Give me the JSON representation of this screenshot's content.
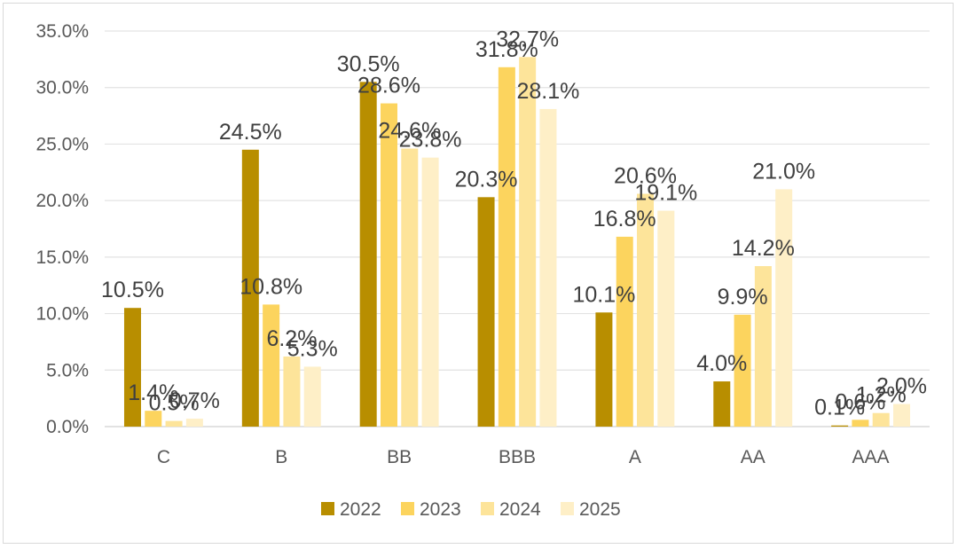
{
  "chart_data": {
    "type": "bar",
    "title": "",
    "xlabel": "",
    "ylabel": "",
    "ylim": [
      0,
      35
    ],
    "yticks": [
      "0.0%",
      "5.0%",
      "10.0%",
      "15.0%",
      "20.0%",
      "25.0%",
      "30.0%",
      "35.0%"
    ],
    "grid": true,
    "legend_position": "bottom",
    "categories": [
      "C",
      "B",
      "BB",
      "BBB",
      "A",
      "AA",
      "AAA"
    ],
    "series": [
      {
        "name": "2022",
        "color": "#B88E00",
        "values": [
          10.5,
          24.5,
          30.5,
          20.3,
          10.1,
          4.0,
          0.1
        ],
        "labels": [
          "10.5%",
          "24.5%",
          "30.5%",
          "20.3%",
          "10.1%",
          "4.0%",
          "0.1%"
        ]
      },
      {
        "name": "2023",
        "color": "#FCD45E",
        "values": [
          1.4,
          10.8,
          28.6,
          31.8,
          16.8,
          9.9,
          0.6
        ],
        "labels": [
          "1.4%",
          "10.8%",
          "28.6%",
          "31.8%",
          "16.8%",
          "9.9%",
          "0.6%"
        ]
      },
      {
        "name": "2024",
        "color": "#FDE49A",
        "values": [
          0.5,
          6.2,
          24.6,
          32.7,
          20.6,
          14.2,
          1.2
        ],
        "labels": [
          "0.5%",
          "6.2%",
          "24.6%",
          "32.7%",
          "20.6%",
          "14.2%",
          "1.2%"
        ]
      },
      {
        "name": "2025",
        "color": "#FEEFC7",
        "values": [
          0.7,
          5.3,
          23.8,
          28.1,
          19.1,
          21.0,
          2.0
        ],
        "labels": [
          "0.7%",
          "5.3%",
          "23.8%",
          "28.1%",
          "19.1%",
          "21.0%",
          "2.0%"
        ]
      }
    ]
  }
}
